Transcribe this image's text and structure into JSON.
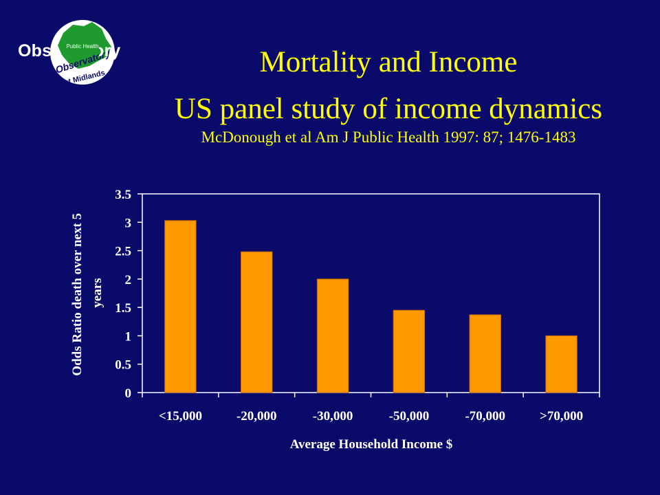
{
  "logo": {
    "word": "Observatory",
    "inner_text": "Public Health",
    "ring_text_top": "Observatory",
    "ring_text_bottom": "West Midlands",
    "colors": {
      "land": "#1f9a2e",
      "disc": "#ffffff",
      "ring_text": "#0a0a6b",
      "accent": "#ffff00"
    }
  },
  "slide": {
    "title": "Mortality and Income",
    "subtitle": "US panel study of income dynamics",
    "citation": "McDonough et al Am J Public Health 1997: 87; 1476-1483"
  },
  "chart_data": {
    "type": "bar",
    "categories": [
      "<15,000",
      "-20,000",
      "-30,000",
      "-50,000",
      "-70,000",
      ">70,000"
    ],
    "values": [
      3.03,
      2.48,
      2.0,
      1.45,
      1.37,
      1.0
    ],
    "ylim": [
      0,
      3.5
    ],
    "yticks": [
      "0",
      "0.5",
      "1",
      "1.5",
      "2",
      "2.5",
      "3",
      "3.5"
    ],
    "xlabel": "Average Household Income $",
    "ylabel_lines": [
      "Odds Ratio death over next 5",
      "years"
    ],
    "bar_color": "#ff9900",
    "bar_edge_color": "#cc6600",
    "text_color": "#ffffff",
    "grid": false,
    "legend": "none"
  }
}
